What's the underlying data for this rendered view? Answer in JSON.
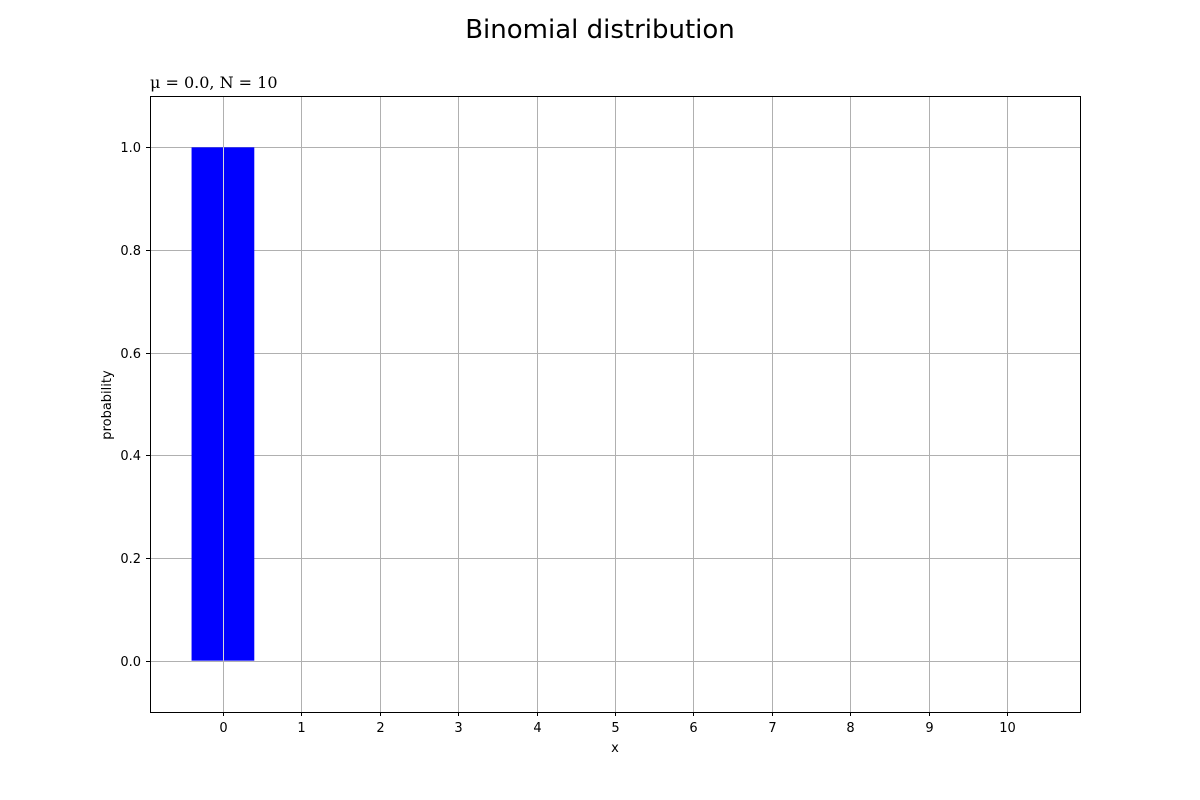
{
  "chart_data": {
    "type": "bar",
    "title": "Binomial distribution",
    "subtitle": "μ = 0.0, N = 10",
    "xlabel": "x",
    "ylabel": "probability",
    "categories": [
      0,
      1,
      2,
      3,
      4,
      5,
      6,
      7,
      8,
      9,
      10
    ],
    "values": [
      1.0,
      0,
      0,
      0,
      0,
      0,
      0,
      0,
      0,
      0,
      0
    ],
    "x_ticks": [
      "0",
      "1",
      "2",
      "3",
      "4",
      "5",
      "6",
      "7",
      "8",
      "9",
      "10"
    ],
    "y_ticks": [
      "0.0",
      "0.2",
      "0.4",
      "0.6",
      "0.8",
      "1.0"
    ],
    "xlim": [
      -0.93,
      10.93
    ],
    "ylim": [
      -0.1,
      1.1
    ],
    "bar_width": 0.8,
    "grid": true,
    "bar_color": "#0000ff",
    "grid_color": "#b0b0b0"
  }
}
